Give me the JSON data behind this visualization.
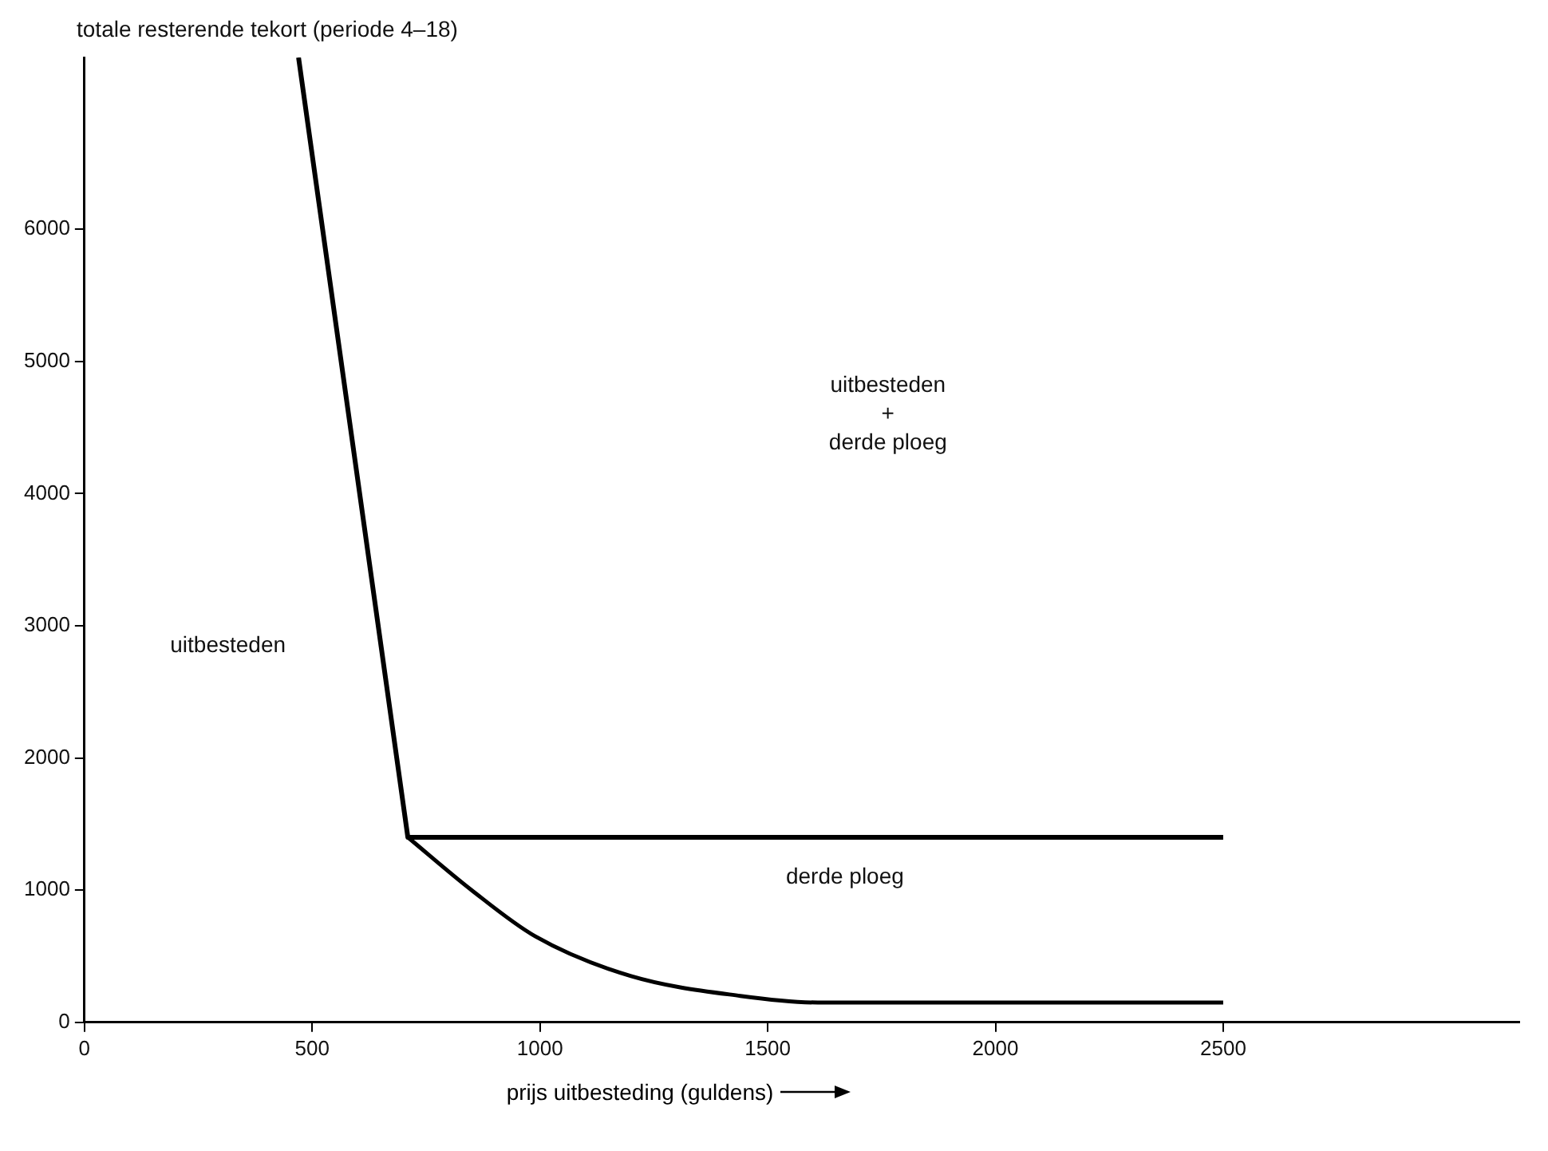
{
  "chart_data": {
    "type": "line",
    "ylabel": "totale resterende tekort (periode 4–18)",
    "xlabel": "prijs uitbesteding  (guldens)",
    "xlim": [
      0,
      3150
    ],
    "xticks": [
      0,
      500,
      1000,
      1500,
      2000,
      2500
    ],
    "ylim": [
      0,
      7300
    ],
    "yticks": [
      0,
      1000,
      2000,
      3000,
      4000,
      5000,
      6000
    ],
    "grid": false,
    "legend": false,
    "marker": "none",
    "line_style": "solid",
    "series": [
      {
        "color": "#000000",
        "x": [
          470,
          710,
          2500
        ],
        "values": [
          7300,
          1400,
          1400
        ]
      },
      {
        "color": "#000000",
        "x": [
          710,
          850,
          990,
          1200,
          1440,
          1610,
          2500
        ],
        "values": [
          1400,
          1000,
          650,
          350,
          200,
          150,
          150
        ]
      }
    ],
    "annotations": [
      "uitbesteden",
      "uitbesteden\n+\nderde ploeg",
      "derde ploeg"
    ]
  }
}
